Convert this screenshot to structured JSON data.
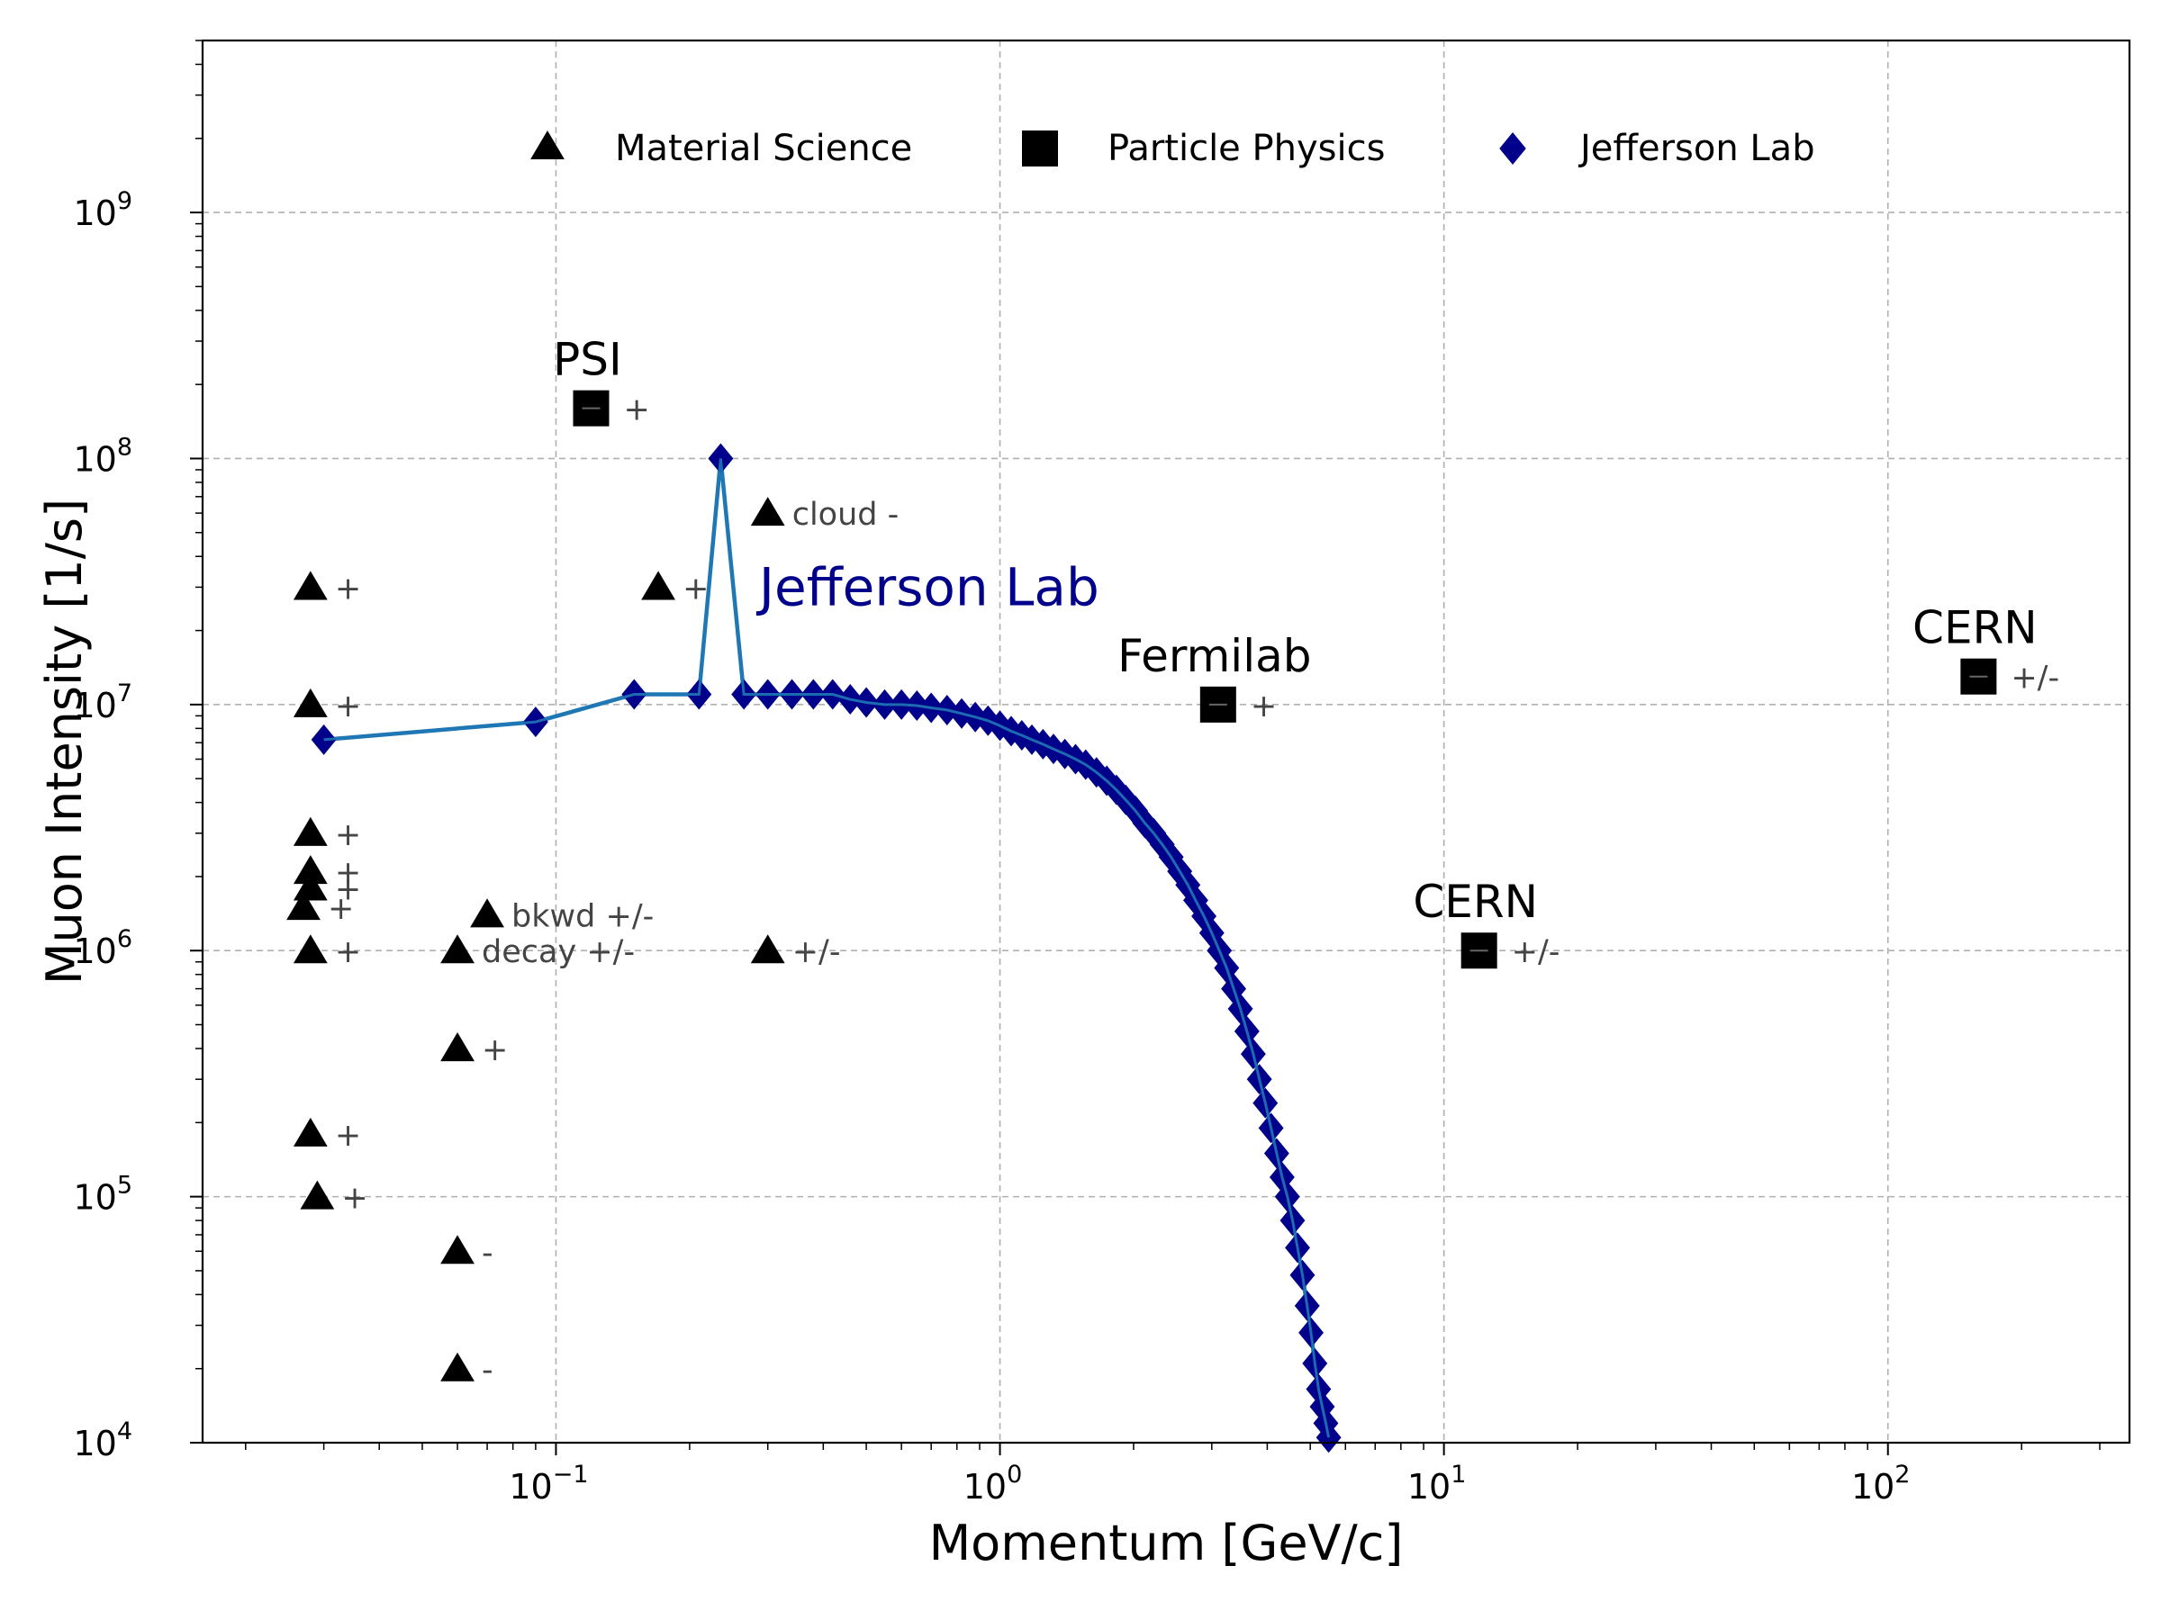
{
  "chart_data": {
    "type": "scatter",
    "title": "",
    "xlabel": "Momentum [GeV/c]",
    "ylabel": "Muon Intensity [1/s]",
    "xscale": "log",
    "yscale": "log",
    "xlim": [
      0.016,
      350
    ],
    "ylim": [
      10000,
      5000000000
    ],
    "x_ticks": [
      {
        "value": 0.1,
        "base": "10",
        "exp": "−1"
      },
      {
        "value": 1,
        "base": "10",
        "exp": "0"
      },
      {
        "value": 10,
        "base": "10",
        "exp": "1"
      },
      {
        "value": 100,
        "base": "10",
        "exp": "2"
      }
    ],
    "y_ticks": [
      {
        "value": 10000,
        "base": "10",
        "exp": "4"
      },
      {
        "value": 100000,
        "base": "10",
        "exp": "5"
      },
      {
        "value": 1000000,
        "base": "10",
        "exp": "6"
      },
      {
        "value": 10000000,
        "base": "10",
        "exp": "7"
      },
      {
        "value": 100000000,
        "base": "10",
        "exp": "8"
      },
      {
        "value": 1000000000,
        "base": "10",
        "exp": "9"
      }
    ],
    "grid": true,
    "legend_position": "top",
    "legend": [
      {
        "label": "Material Science",
        "marker": "triangle"
      },
      {
        "label": "Particle Physics",
        "marker": "square"
      },
      {
        "label": "Jefferson Lab",
        "marker": "diamond"
      }
    ],
    "colors": {
      "material": "#000000",
      "particle": "#000000",
      "jlab_marker": "#00008b",
      "jlab_line": "#1f77b4",
      "jlab_label": "#00008b",
      "grid": "#b0b0b0",
      "annotation": "#444444"
    },
    "series": [
      {
        "name": "Material Science",
        "marker": "triangle",
        "points": [
          {
            "x": 0.028,
            "y": 30000000,
            "label": "+"
          },
          {
            "x": 0.028,
            "y": 10000000,
            "label": "+"
          },
          {
            "x": 0.028,
            "y": 3000000,
            "label": "+"
          },
          {
            "x": 0.028,
            "y": 2100000,
            "label": "+"
          },
          {
            "x": 0.028,
            "y": 1800000,
            "label": "+"
          },
          {
            "x": 0.027,
            "y": 1500000,
            "label": "+"
          },
          {
            "x": 0.028,
            "y": 1000000,
            "label": "+"
          },
          {
            "x": 0.028,
            "y": 180000,
            "label": "+"
          },
          {
            "x": 0.029,
            "y": 100000,
            "label": "+"
          },
          {
            "x": 0.06,
            "y": 1000000,
            "label": "decay +/-"
          },
          {
            "x": 0.07,
            "y": 1400000,
            "label": "bkwd +/-"
          },
          {
            "x": 0.06,
            "y": 400000,
            "label": "+"
          },
          {
            "x": 0.06,
            "y": 60000,
            "label": "-"
          },
          {
            "x": 0.06,
            "y": 20000,
            "label": "-"
          },
          {
            "x": 0.17,
            "y": 30000000,
            "label": "+"
          },
          {
            "x": 0.3,
            "y": 60000000,
            "label": "cloud -"
          },
          {
            "x": 0.3,
            "y": 1000000,
            "label": "+/-"
          }
        ]
      },
      {
        "name": "Particle Physics",
        "marker": "square",
        "points": [
          {
            "x": 0.12,
            "y": 160000000,
            "label": "+",
            "facility": "PSI"
          },
          {
            "x": 3.1,
            "y": 10000000,
            "label": "+",
            "facility": "Fermilab"
          },
          {
            "x": 12,
            "y": 1000000,
            "label": "+/-",
            "facility": "CERN"
          },
          {
            "x": 160,
            "y": 13000000,
            "label": "+/-",
            "facility": "CERN"
          }
        ]
      },
      {
        "name": "Jefferson Lab",
        "marker": "diamond",
        "annotation": "Jefferson Lab",
        "annotation_at": {
          "x": 0.28,
          "y": 30000000
        },
        "x": [
          0.03,
          0.09,
          0.15,
          0.21,
          0.235,
          0.265,
          0.3,
          0.34,
          0.38,
          0.42,
          0.46,
          0.5,
          0.55,
          0.6,
          0.65,
          0.7,
          0.76,
          0.82,
          0.88,
          0.94,
          1.0,
          1.06,
          1.12,
          1.18,
          1.25,
          1.32,
          1.4,
          1.48,
          1.56,
          1.65,
          1.74,
          1.83,
          1.92,
          2.02,
          2.12,
          2.22,
          2.32,
          2.43,
          2.54,
          2.65,
          2.76,
          2.88,
          3.0,
          3.12,
          3.24,
          3.36,
          3.48,
          3.6,
          3.72,
          3.84,
          3.96,
          4.08,
          4.2,
          4.32,
          4.44,
          4.56,
          4.68,
          4.8,
          4.92,
          5.02,
          5.12,
          5.22,
          5.32,
          5.42,
          5.5
        ],
        "y": [
          7200000,
          8500000,
          11000000,
          11000000,
          100000000,
          11000000,
          11000000,
          11000000,
          11000000,
          11000000,
          10500000,
          10200000,
          10000000,
          10000000,
          9900000,
          9700000,
          9500000,
          9200000,
          8900000,
          8600000,
          8200000,
          7800000,
          7500000,
          7200000,
          6900000,
          6600000,
          6300000,
          6000000,
          5700000,
          5300000,
          4900000,
          4500000,
          4100000,
          3700000,
          3300000,
          3000000,
          2700000,
          2400000,
          2100000,
          1850000,
          1600000,
          1380000,
          1180000,
          1000000,
          850000,
          700000,
          580000,
          470000,
          380000,
          300000,
          240000,
          190000,
          150000,
          120000,
          100000,
          80000,
          62000,
          48000,
          36000,
          28000,
          21000,
          16500,
          14000,
          12000,
          10500
        ]
      }
    ]
  }
}
